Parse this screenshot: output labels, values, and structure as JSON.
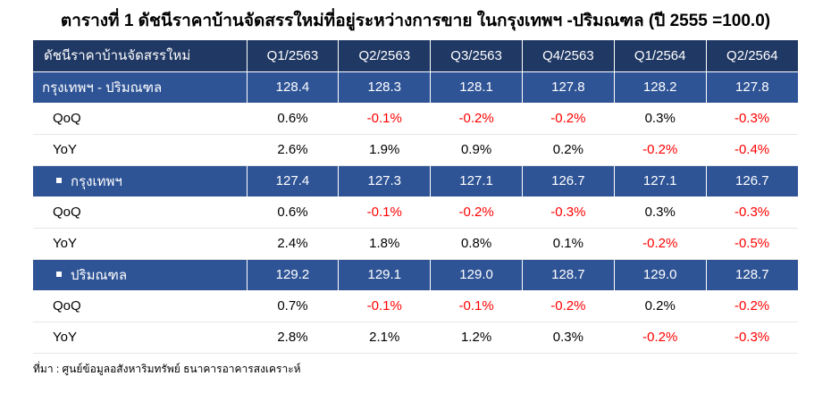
{
  "title": "ตารางที่ 1 ดัชนีราคาบ้านจัดสรรใหม่ที่อยู่ระหว่างการขาย ในกรุงเทพฯ -ปริมณฑล (ปี 2555 =100.0)",
  "table": {
    "header": {
      "label": "ดัชนีราคาบ้านจัดสรรใหม่",
      "columns": [
        "Q1/2563",
        "Q2/2563",
        "Q3/2563",
        "Q4/2563",
        "Q1/2564",
        "Q2/2564"
      ]
    },
    "groups": [
      {
        "name": "กรุงเทพฯ - ปริมณฑล",
        "bullet": false,
        "index": [
          "128.4",
          "128.3",
          "128.1",
          "127.8",
          "128.2",
          "127.8"
        ],
        "qoq_label": "QoQ",
        "qoq": [
          "0.6%",
          "-0.1%",
          "-0.2%",
          "-0.2%",
          "0.3%",
          "-0.3%"
        ],
        "yoy_label": "YoY",
        "yoy": [
          "2.6%",
          "1.9%",
          "0.9%",
          "0.2%",
          "-0.2%",
          "-0.4%"
        ]
      },
      {
        "name": "กรุงเทพฯ",
        "bullet": true,
        "index": [
          "127.4",
          "127.3",
          "127.1",
          "126.7",
          "127.1",
          "126.7"
        ],
        "qoq_label": "QoQ",
        "qoq": [
          "0.6%",
          "-0.1%",
          "-0.2%",
          "-0.3%",
          "0.3%",
          "-0.3%"
        ],
        "yoy_label": "YoY",
        "yoy": [
          "2.4%",
          "1.8%",
          "0.8%",
          "0.1%",
          "-0.2%",
          "-0.5%"
        ]
      },
      {
        "name": "ปริมณฑล",
        "bullet": true,
        "index": [
          "129.2",
          "129.1",
          "129.0",
          "128.7",
          "129.0",
          "128.7"
        ],
        "qoq_label": "QoQ",
        "qoq": [
          "0.7%",
          "-0.1%",
          "-0.1%",
          "-0.2%",
          "0.2%",
          "-0.2%"
        ],
        "yoy_label": "YoY",
        "yoy": [
          "2.8%",
          "2.1%",
          "1.2%",
          "0.3%",
          "-0.2%",
          "-0.3%"
        ]
      }
    ]
  },
  "source": "ที่มา : ศูนย์ข้อมูลอสังหาริมทรัพย์ ธนาคารอาคารสงเคราะห์",
  "colors": {
    "header_bg": "#203864",
    "region_bg": "#2f5496",
    "negative": "#ff0000"
  }
}
